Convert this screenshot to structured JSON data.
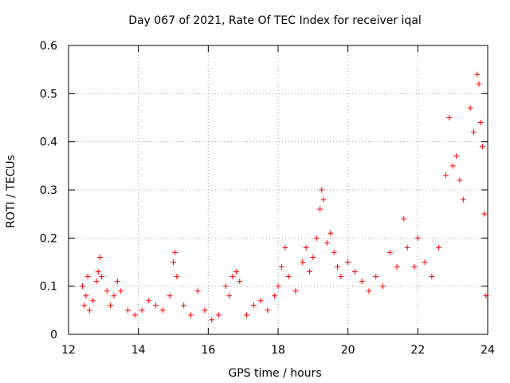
{
  "chart_data": {
    "type": "scatter",
    "title": "Day 067 of 2021, Rate Of TEC Index for receiver iqal",
    "xlabel": "GPS time / hours",
    "ylabel": "ROTI / TECUs",
    "xlim": [
      12,
      24
    ],
    "ylim": [
      0,
      0.6
    ],
    "x_ticks": [
      12,
      14,
      16,
      18,
      20,
      22,
      24
    ],
    "x_tick_labels": [
      "12",
      "14",
      "16",
      "18",
      "20",
      "22",
      "24"
    ],
    "y_ticks": [
      0,
      0.1,
      0.2,
      0.3,
      0.4,
      0.5,
      0.6
    ],
    "y_tick_labels": [
      "0",
      "0.1",
      "0.2",
      "0.3",
      "0.4",
      "0.5",
      "0.6"
    ],
    "grid": true,
    "marker": "+",
    "color": "#ff0000",
    "series": [
      {
        "name": "ROTI",
        "points": [
          [
            12.4,
            0.1
          ],
          [
            12.45,
            0.06
          ],
          [
            12.5,
            0.08
          ],
          [
            12.55,
            0.12
          ],
          [
            12.6,
            0.05
          ],
          [
            12.7,
            0.07
          ],
          [
            12.8,
            0.11
          ],
          [
            12.85,
            0.13
          ],
          [
            12.9,
            0.16
          ],
          [
            12.95,
            0.12
          ],
          [
            13.1,
            0.09
          ],
          [
            13.2,
            0.06
          ],
          [
            13.3,
            0.08
          ],
          [
            13.4,
            0.11
          ],
          [
            13.5,
            0.09
          ],
          [
            13.7,
            0.05
          ],
          [
            13.9,
            0.04
          ],
          [
            14.1,
            0.05
          ],
          [
            14.3,
            0.07
          ],
          [
            14.5,
            0.06
          ],
          [
            14.7,
            0.05
          ],
          [
            14.9,
            0.08
          ],
          [
            15.0,
            0.15
          ],
          [
            15.05,
            0.17
          ],
          [
            15.1,
            0.12
          ],
          [
            15.3,
            0.06
          ],
          [
            15.5,
            0.04
          ],
          [
            15.7,
            0.09
          ],
          [
            15.9,
            0.05
          ],
          [
            16.1,
            0.03
          ],
          [
            16.3,
            0.04
          ],
          [
            16.5,
            0.1
          ],
          [
            16.6,
            0.08
          ],
          [
            16.7,
            0.12
          ],
          [
            16.8,
            0.13
          ],
          [
            16.9,
            0.11
          ],
          [
            17.1,
            0.04
          ],
          [
            17.3,
            0.06
          ],
          [
            17.5,
            0.07
          ],
          [
            17.7,
            0.05
          ],
          [
            17.9,
            0.08
          ],
          [
            18.0,
            0.1
          ],
          [
            18.1,
            0.14
          ],
          [
            18.2,
            0.18
          ],
          [
            18.3,
            0.12
          ],
          [
            18.5,
            0.09
          ],
          [
            18.7,
            0.15
          ],
          [
            18.8,
            0.18
          ],
          [
            18.9,
            0.13
          ],
          [
            19.0,
            0.16
          ],
          [
            19.1,
            0.2
          ],
          [
            19.2,
            0.26
          ],
          [
            19.25,
            0.3
          ],
          [
            19.3,
            0.28
          ],
          [
            19.4,
            0.19
          ],
          [
            19.5,
            0.21
          ],
          [
            19.6,
            0.17
          ],
          [
            19.7,
            0.14
          ],
          [
            19.8,
            0.12
          ],
          [
            20.0,
            0.15
          ],
          [
            20.2,
            0.13
          ],
          [
            20.4,
            0.11
          ],
          [
            20.6,
            0.09
          ],
          [
            20.8,
            0.12
          ],
          [
            21.0,
            0.1
          ],
          [
            21.2,
            0.17
          ],
          [
            21.4,
            0.14
          ],
          [
            21.6,
            0.24
          ],
          [
            21.7,
            0.18
          ],
          [
            21.9,
            0.14
          ],
          [
            22.0,
            0.2
          ],
          [
            22.2,
            0.15
          ],
          [
            22.4,
            0.12
          ],
          [
            22.6,
            0.18
          ],
          [
            22.8,
            0.33
          ],
          [
            22.9,
            0.45
          ],
          [
            23.0,
            0.35
          ],
          [
            23.1,
            0.37
          ],
          [
            23.2,
            0.32
          ],
          [
            23.3,
            0.28
          ],
          [
            23.5,
            0.47
          ],
          [
            23.6,
            0.42
          ],
          [
            23.7,
            0.54
          ],
          [
            23.75,
            0.52
          ],
          [
            23.8,
            0.44
          ],
          [
            23.85,
            0.39
          ],
          [
            23.9,
            0.25
          ],
          [
            23.95,
            0.08
          ]
        ]
      }
    ]
  }
}
